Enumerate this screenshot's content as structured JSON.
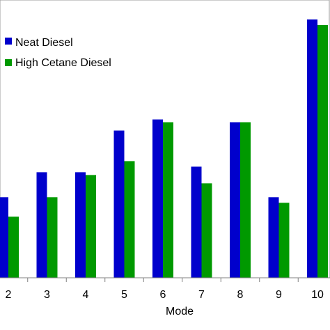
{
  "chart_data": {
    "type": "bar",
    "title": "",
    "xlabel": "Mode",
    "ylabel": "",
    "categories": [
      "2",
      "3",
      "4",
      "5",
      "6",
      "7",
      "8",
      "9",
      "10"
    ],
    "series": [
      {
        "name": "Neat Diesel",
        "color": "#0000CC",
        "values": [
          29,
          38,
          38,
          53,
          57,
          40,
          56,
          29,
          93
        ]
      },
      {
        "name": "High Cetane Diesel",
        "color": "#009900",
        "values": [
          22,
          29,
          37,
          42,
          56,
          34,
          56,
          27,
          91
        ]
      }
    ],
    "ylim": [
      0,
      100
    ],
    "grid": false,
    "legend": "top-left"
  }
}
